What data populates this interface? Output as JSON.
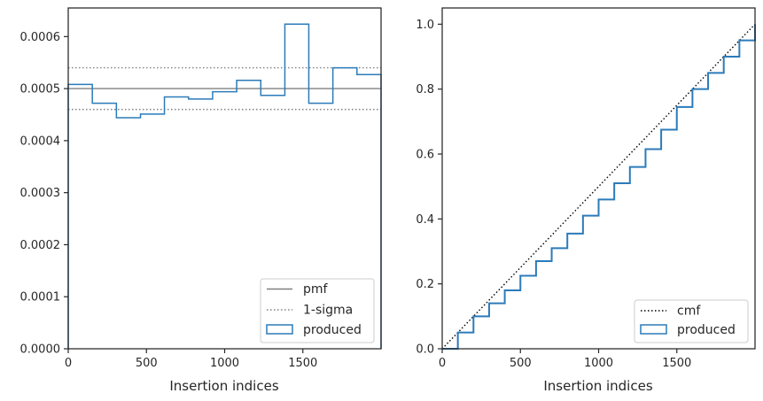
{
  "chart_data": [
    {
      "type": "histogram",
      "xlabel": "Insertion indices",
      "ylabel": "",
      "xlim": [
        0,
        2000
      ],
      "ylim": [
        0,
        0.000655
      ],
      "xticks": [
        0,
        500,
        1000,
        1500
      ],
      "yticks": [
        0.0,
        0.0001,
        0.0002,
        0.0003,
        0.0004,
        0.0005,
        0.0006
      ],
      "ytick_labels": [
        "0.0000",
        "0.0001",
        "0.0002",
        "0.0003",
        "0.0004",
        "0.0005",
        "0.0006"
      ],
      "bin_edges": [
        0,
        154,
        308,
        462,
        615,
        769,
        923,
        1077,
        1231,
        1385,
        1538,
        1692,
        1846,
        2000
      ],
      "values": [
        0.000508,
        0.000472,
        0.000444,
        0.000451,
        0.000484,
        0.00048,
        0.000494,
        0.000516,
        0.000487,
        0.000624,
        0.000472,
        0.00054,
        0.000527
      ],
      "pmf": 0.0005,
      "sigma_band": [
        0.00046,
        0.00054
      ],
      "grid": false,
      "legend_position": "lower right",
      "legend": [
        "pmf",
        "1-sigma",
        "produced"
      ],
      "colors": {
        "produced": "#2b7bba",
        "pmf": "#808080",
        "sigma": "#808080"
      }
    },
    {
      "type": "line",
      "xlabel": "Insertion indices",
      "ylabel": "",
      "xlim": [
        0,
        2000
      ],
      "ylim": [
        0,
        1.05
      ],
      "xticks": [
        0,
        500,
        1000,
        1500
      ],
      "yticks": [
        0.0,
        0.2,
        0.4,
        0.6,
        0.8,
        1.0
      ],
      "ytick_labels": [
        "0.0",
        "0.2",
        "0.4",
        "0.6",
        "0.8",
        "1.0"
      ],
      "series": [
        {
          "name": "cmf",
          "style": "dotted",
          "color": "#000000",
          "x": [
            0,
            2000
          ],
          "y": [
            0,
            1.0
          ]
        },
        {
          "name": "produced",
          "style": "step",
          "color": "#2b7bba",
          "x": [
            0,
            100,
            200,
            300,
            400,
            500,
            600,
            700,
            800,
            900,
            1000,
            1100,
            1200,
            1300,
            1400,
            1500,
            1600,
            1700,
            1800,
            1900,
            2000
          ],
          "y": [
            0,
            0.05,
            0.1,
            0.14,
            0.18,
            0.225,
            0.27,
            0.31,
            0.355,
            0.41,
            0.46,
            0.51,
            0.56,
            0.615,
            0.675,
            0.745,
            0.8,
            0.85,
            0.9,
            0.95,
            1.0
          ]
        }
      ],
      "grid": false,
      "legend_position": "lower right",
      "legend": [
        "cmf",
        "produced"
      ]
    }
  ]
}
